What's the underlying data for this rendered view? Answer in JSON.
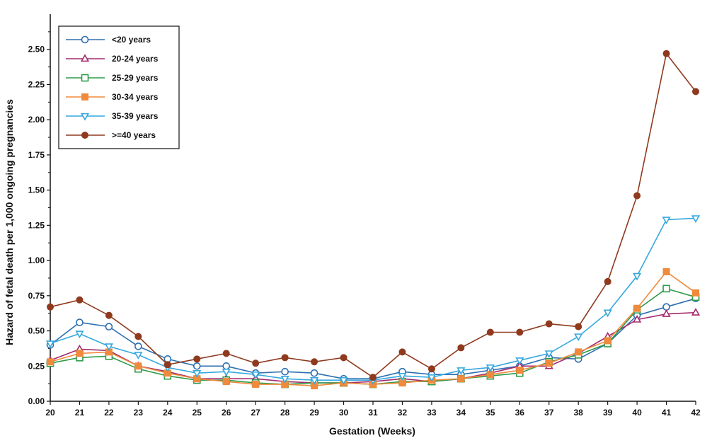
{
  "chart_data": {
    "type": "line",
    "title": "",
    "xlabel": "Gestation (Weeks)",
    "ylabel": "Hazard of fetal death per 1,000 ongoing pregnancies",
    "xlim": [
      20,
      42
    ],
    "ylim": [
      0,
      2.75
    ],
    "x": [
      20,
      21,
      22,
      23,
      24,
      25,
      26,
      27,
      28,
      29,
      30,
      31,
      32,
      33,
      34,
      35,
      36,
      37,
      38,
      39,
      40,
      41,
      42
    ],
    "x_tick_labels": [
      "20",
      "21",
      "22",
      "23",
      "24",
      "25",
      "26",
      "27",
      "28",
      "29",
      "30",
      "31",
      "32",
      "33",
      "34",
      "35",
      "36",
      "37",
      "38",
      "39",
      "40",
      "41",
      "42"
    ],
    "y_ticks": [
      0,
      0.25,
      0.5,
      0.75,
      1.0,
      1.25,
      1.5,
      1.75,
      2.0,
      2.25,
      2.5
    ],
    "y_tick_labels": [
      "0.00",
      "0.25",
      "0.50",
      "0.75",
      "1.00",
      "1.25",
      "1.50",
      "1.75",
      "2.00",
      "2.25",
      "2.50"
    ],
    "grid": false,
    "legend_position": "top-left",
    "series": [
      {
        "name": "<20 years",
        "color": "#2f6fb0",
        "marker": "circle-open",
        "values": [
          0.4,
          0.56,
          0.53,
          0.39,
          0.3,
          0.25,
          0.25,
          0.2,
          0.21,
          0.2,
          0.16,
          0.16,
          0.21,
          0.19,
          0.19,
          0.22,
          0.25,
          0.31,
          0.3,
          0.41,
          0.61,
          0.67,
          0.73
        ]
      },
      {
        "name": "20-24 years",
        "color": "#a32a6e",
        "marker": "triangle-up-open",
        "values": [
          0.29,
          0.37,
          0.36,
          0.25,
          0.21,
          0.16,
          0.16,
          0.16,
          0.14,
          0.13,
          0.13,
          0.14,
          0.16,
          0.14,
          0.16,
          0.2,
          0.25,
          0.25,
          0.34,
          0.46,
          0.58,
          0.62,
          0.63
        ]
      },
      {
        "name": "25-29 years",
        "color": "#2e9b4a",
        "marker": "square-open",
        "values": [
          0.27,
          0.31,
          0.32,
          0.23,
          0.18,
          0.15,
          0.15,
          0.13,
          0.12,
          0.13,
          0.13,
          0.12,
          0.14,
          0.14,
          0.16,
          0.18,
          0.2,
          0.28,
          0.33,
          0.41,
          0.65,
          0.8,
          0.74
        ]
      },
      {
        "name": "30-34 years",
        "color": "#f08a3c",
        "marker": "square-filled",
        "values": [
          0.28,
          0.34,
          0.35,
          0.25,
          0.2,
          0.16,
          0.14,
          0.12,
          0.12,
          0.11,
          0.13,
          0.12,
          0.13,
          0.15,
          0.16,
          0.19,
          0.22,
          0.27,
          0.35,
          0.43,
          0.66,
          0.92,
          0.77
        ]
      },
      {
        "name": "35-39 years",
        "color": "#36a8df",
        "marker": "triangle-down-open",
        "values": [
          0.41,
          0.48,
          0.39,
          0.33,
          0.24,
          0.2,
          0.21,
          0.19,
          0.16,
          0.15,
          0.15,
          0.15,
          0.18,
          0.17,
          0.22,
          0.24,
          0.29,
          0.34,
          0.46,
          0.63,
          0.89,
          1.29,
          1.3
        ]
      },
      {
        "name": ">=40 years",
        "color": "#8f3a1e",
        "marker": "circle-filled",
        "values": [
          0.67,
          0.72,
          0.61,
          0.46,
          0.26,
          0.3,
          0.34,
          0.27,
          0.31,
          0.28,
          0.31,
          0.17,
          0.35,
          0.23,
          0.38,
          0.49,
          0.49,
          0.55,
          0.53,
          0.85,
          1.46,
          2.47,
          2.2
        ]
      }
    ]
  }
}
